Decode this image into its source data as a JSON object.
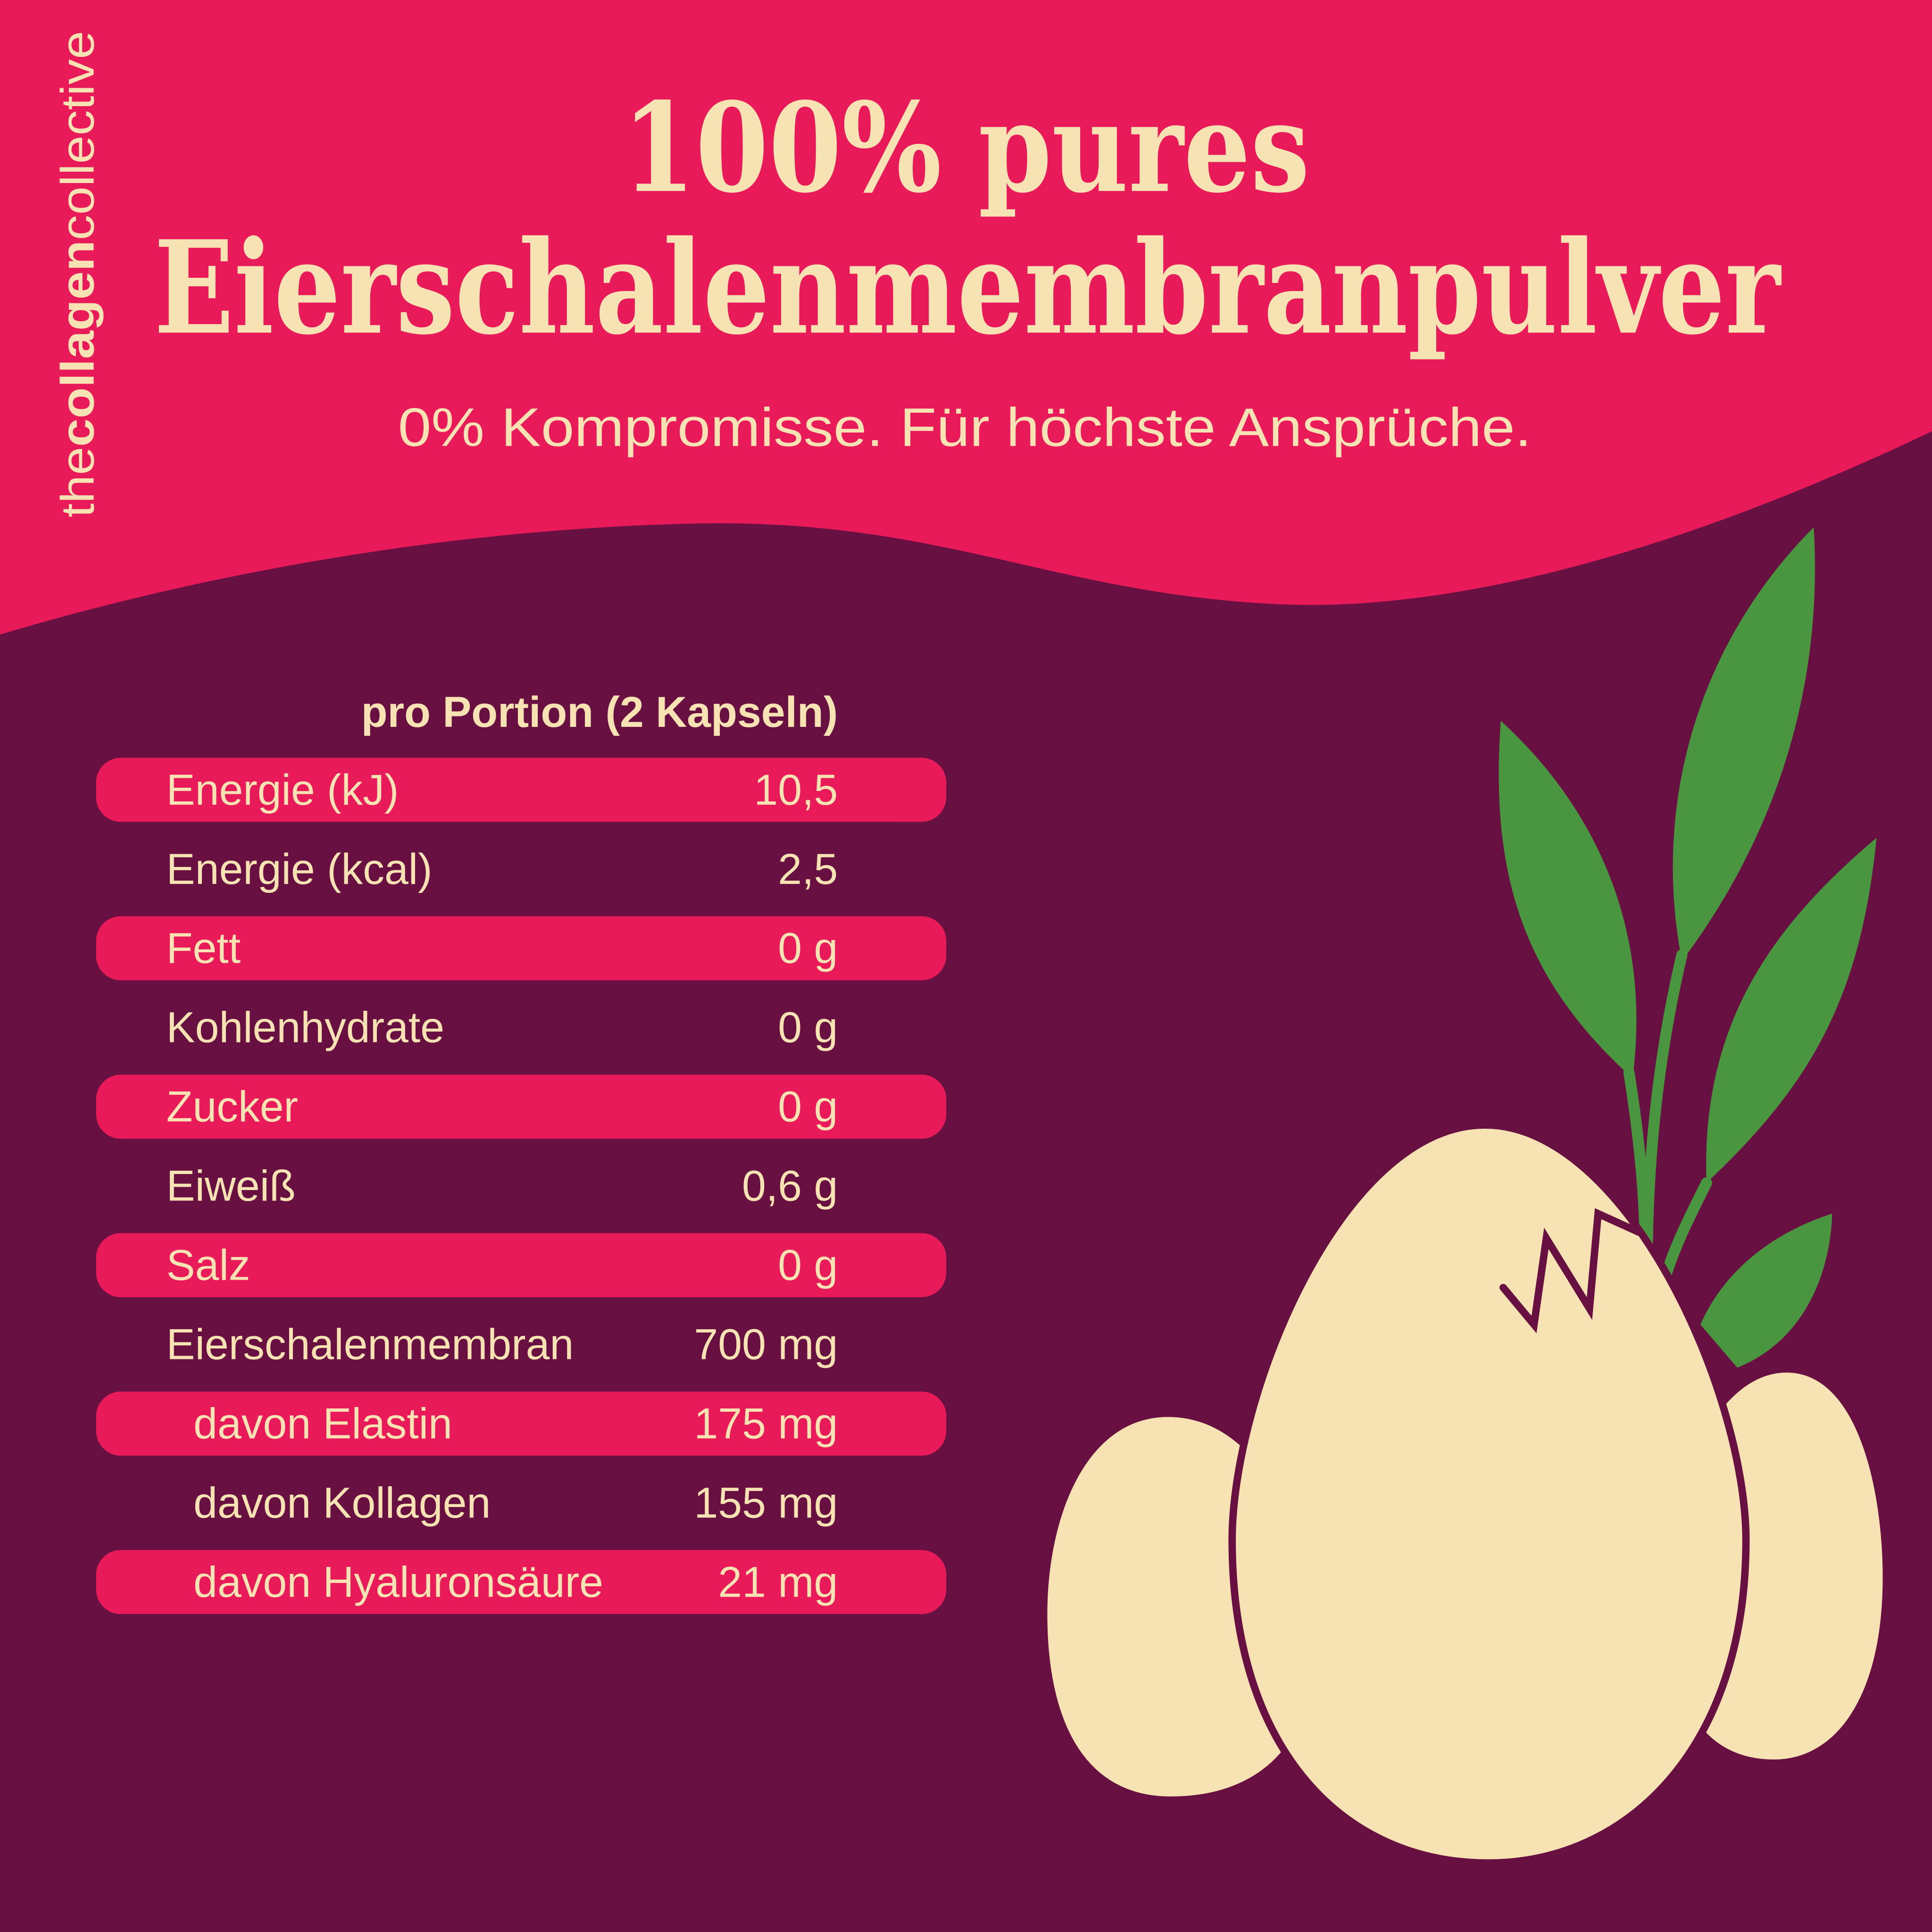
{
  "brand": {
    "prefix": "the",
    "bold": "collagen",
    "suffix": "collective"
  },
  "title": {
    "line1": "100% pures",
    "line2": "Eierschalenmembranpulver"
  },
  "subtitle": "0% Kompromisse. Für höchste Ansprüche.",
  "table": {
    "header": "pro Portion (2 Kapseln)",
    "rows": [
      {
        "label": "Energie (kJ)",
        "value": "10,5",
        "highlight": true,
        "indent": false
      },
      {
        "label": "Energie (kcal)",
        "value": "2,5",
        "highlight": false,
        "indent": false
      },
      {
        "label": "Fett",
        "value": "0 g",
        "highlight": true,
        "indent": false
      },
      {
        "label": "Kohlenhydrate",
        "value": "0 g",
        "highlight": false,
        "indent": false
      },
      {
        "label": "Zucker",
        "value": "0 g",
        "highlight": true,
        "indent": false
      },
      {
        "label": "Eiweiß",
        "value": "0,6 g",
        "highlight": false,
        "indent": false
      },
      {
        "label": "Salz",
        "value": "0 g",
        "highlight": true,
        "indent": false
      },
      {
        "label": "Eierschalenmembran",
        "value": "700 mg",
        "highlight": false,
        "indent": false
      },
      {
        "label": "davon Elastin",
        "value": "175 mg",
        "highlight": true,
        "indent": true
      },
      {
        "label": "davon Kollagen",
        "value": "155 mg",
        "highlight": false,
        "indent": true
      },
      {
        "label": "davon Hyaluronsäure",
        "value": "21 mg",
        "highlight": true,
        "indent": true
      }
    ]
  },
  "illustration": {
    "icons": [
      "egg-icon",
      "leaf-icon",
      "crack-icon"
    ]
  },
  "colors": {
    "pink": "#E81A5A",
    "plum": "#671041",
    "cream": "#F7E2B3",
    "green": "#4A9640"
  }
}
